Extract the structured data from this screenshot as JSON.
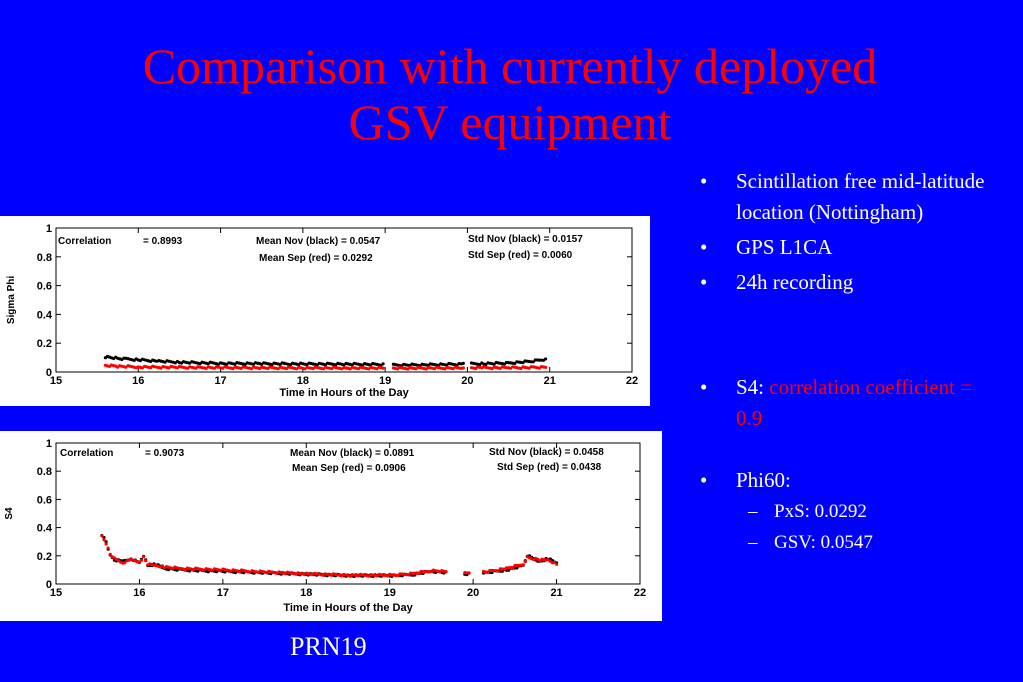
{
  "slide": {
    "title_line1": "Comparison with currently deployed",
    "title_line2": "GSV equipment",
    "bullets": [
      "Scintillation free mid-latitude location (Nottingham)",
      "GPS L1CA",
      "24h recording"
    ],
    "s4_prefix": "S4: ",
    "s4_highlight": "correlation coefficient = 0.9",
    "phi_label": "Phi60:",
    "sub_bullets": [
      "PxS: 0.0292",
      "GSV: 0.0547"
    ],
    "bullet_glyph": "•",
    "dash_glyph": "–",
    "caption": "PRN19",
    "colors": {
      "background": "#0000ff",
      "title": "#ff0000",
      "highlight": "#ff0000",
      "text": "#ffffff"
    }
  },
  "chart_data": [
    {
      "type": "scatter",
      "ylabel": "Sigma Phi",
      "xlabel": "Time in Hours of the Day",
      "xlim": [
        15,
        22
      ],
      "ylim": [
        0,
        1
      ],
      "xticks": [
        "15",
        "16",
        "17",
        "18",
        "19",
        "20",
        "21",
        "22"
      ],
      "yticks": [
        "0",
        "0.2",
        "0.4",
        "0.6",
        "0.8",
        "1"
      ],
      "annotations": [
        "Correlation",
        "= 0.8993",
        "Mean Nov (black) = 0.0547",
        "Mean Sep (red)   = 0.0292",
        "Std Nov (black)   = 0.0157",
        "Std Sep (red)     = 0.0060"
      ],
      "series": [
        {
          "color": "#000000",
          "points": [
            [
              15.6,
              0.105
            ],
            [
              15.75,
              0.095
            ],
            [
              15.85,
              0.09
            ],
            [
              16.0,
              0.085
            ],
            [
              16.25,
              0.075
            ],
            [
              16.5,
              0.068
            ],
            [
              17.0,
              0.06
            ],
            [
              17.5,
              0.058
            ],
            [
              18.0,
              0.056
            ],
            [
              18.5,
              0.055
            ],
            [
              19.0,
              0.052
            ],
            [
              19.1,
              0.048
            ],
            [
              19.5,
              0.05
            ],
            [
              19.95,
              0.055
            ],
            [
              20.2,
              0.058
            ],
            [
              20.5,
              0.062
            ],
            [
              20.8,
              0.075
            ],
            [
              20.95,
              0.09
            ]
          ],
          "gaps": [
            19.05,
            20.05
          ]
        },
        {
          "color": "#ff0000",
          "points": [
            [
              15.6,
              0.045
            ],
            [
              15.75,
              0.04
            ],
            [
              16.0,
              0.035
            ],
            [
              16.5,
              0.032
            ],
            [
              17.0,
              0.03
            ],
            [
              17.5,
              0.029
            ],
            [
              18.0,
              0.028
            ],
            [
              18.5,
              0.028
            ],
            [
              19.0,
              0.027
            ],
            [
              19.1,
              0.026
            ],
            [
              19.5,
              0.027
            ],
            [
              19.95,
              0.028
            ],
            [
              20.2,
              0.029
            ],
            [
              20.5,
              0.03
            ],
            [
              20.8,
              0.031
            ],
            [
              20.95,
              0.032
            ]
          ],
          "gaps": [
            19.05,
            20.05
          ]
        }
      ]
    },
    {
      "type": "scatter",
      "ylabel": "S4",
      "xlabel": "Time in Hours of the Day",
      "xlim": [
        15,
        22
      ],
      "ylim": [
        0,
        1
      ],
      "xticks": [
        "15",
        "16",
        "17",
        "18",
        "19",
        "20",
        "21",
        "22"
      ],
      "yticks": [
        "0",
        "0.2",
        "0.4",
        "0.6",
        "0.8",
        "1"
      ],
      "annotations": [
        "Correlation",
        "= 0.9073",
        "Mean Nov (black) = 0.0891",
        "Mean Sep (red)   = 0.0906",
        "Std Nov (black)   = 0.0458",
        "Std Sep (red)     = 0.0438"
      ],
      "series": [
        {
          "color": "#000000",
          "points": [
            [
              15.55,
              0.35
            ],
            [
              15.6,
              0.3
            ],
            [
              15.65,
              0.2
            ],
            [
              15.7,
              0.17
            ],
            [
              15.8,
              0.16
            ],
            [
              15.9,
              0.18
            ],
            [
              16.0,
              0.15
            ],
            [
              16.05,
              0.2
            ],
            [
              16.1,
              0.13
            ],
            [
              16.2,
              0.14
            ],
            [
              16.3,
              0.11
            ],
            [
              16.5,
              0.1
            ],
            [
              17.0,
              0.09
            ],
            [
              17.5,
              0.08
            ],
            [
              18.0,
              0.07
            ],
            [
              18.5,
              0.06
            ],
            [
              18.9,
              0.06
            ],
            [
              19.1,
              0.06
            ],
            [
              19.3,
              0.07
            ],
            [
              19.5,
              0.09
            ],
            [
              19.7,
              0.08
            ],
            [
              19.9,
              0.07
            ],
            [
              20.15,
              0.08
            ],
            [
              20.4,
              0.1
            ],
            [
              20.6,
              0.13
            ],
            [
              20.65,
              0.2
            ],
            [
              20.8,
              0.16
            ],
            [
              20.9,
              0.18
            ],
            [
              21.0,
              0.15
            ]
          ],
          "gaps": [
            19.7,
            20.1
          ]
        },
        {
          "color": "#ff0000",
          "points": [
            [
              15.55,
              0.34
            ],
            [
              15.6,
              0.29
            ],
            [
              15.65,
              0.21
            ],
            [
              15.7,
              0.18
            ],
            [
              15.8,
              0.15
            ],
            [
              15.9,
              0.17
            ],
            [
              16.0,
              0.16
            ],
            [
              16.05,
              0.19
            ],
            [
              16.1,
              0.14
            ],
            [
              16.2,
              0.13
            ],
            [
              16.3,
              0.12
            ],
            [
              16.5,
              0.11
            ],
            [
              17.0,
              0.1
            ],
            [
              17.5,
              0.085
            ],
            [
              18.0,
              0.072
            ],
            [
              18.5,
              0.062
            ],
            [
              18.9,
              0.062
            ],
            [
              19.1,
              0.065
            ],
            [
              19.3,
              0.075
            ],
            [
              19.5,
              0.095
            ],
            [
              19.7,
              0.085
            ],
            [
              19.9,
              0.075
            ],
            [
              20.15,
              0.085
            ],
            [
              20.4,
              0.11
            ],
            [
              20.6,
              0.14
            ],
            [
              20.65,
              0.19
            ],
            [
              20.8,
              0.17
            ],
            [
              20.9,
              0.17
            ],
            [
              21.0,
              0.14
            ]
          ],
          "gaps": [
            19.7,
            20.1
          ]
        }
      ]
    }
  ]
}
